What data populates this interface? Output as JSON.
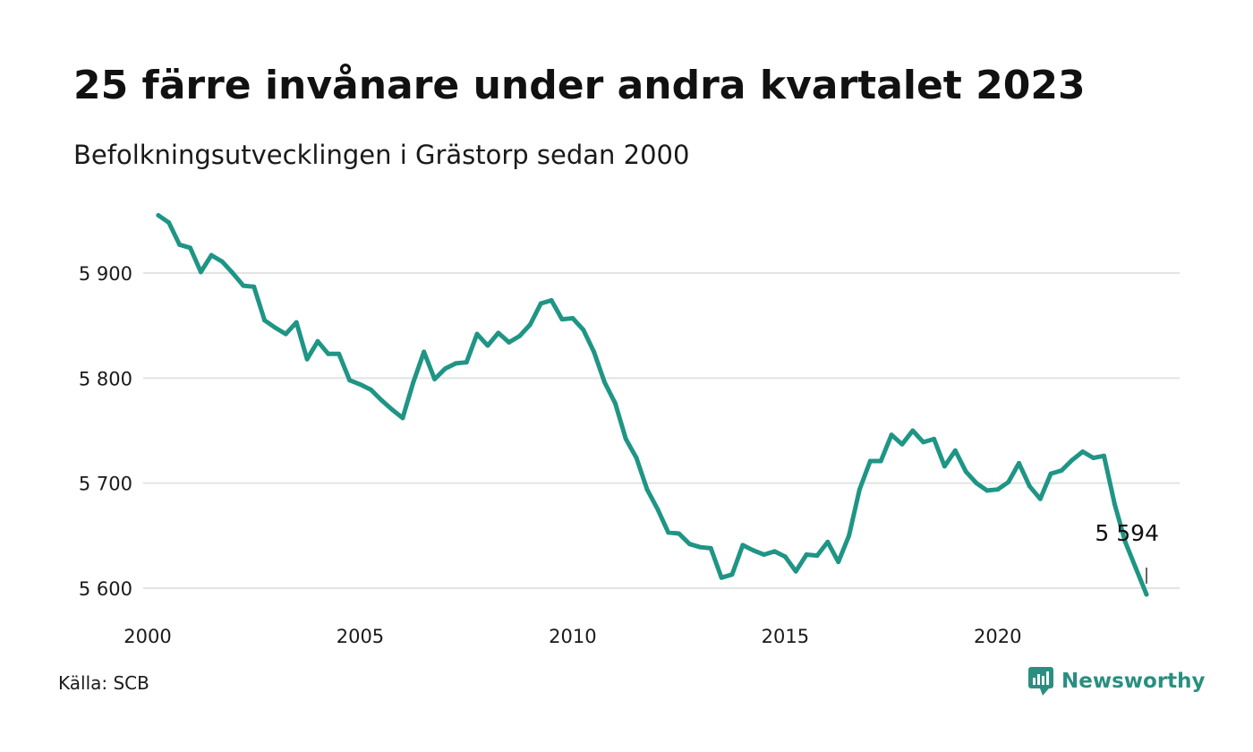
{
  "title": "25 färre invånare under andra kvartalet 2023",
  "subtitle": "Befolkningsutvecklingen i Grästorp sedan 2000",
  "source": "Källa: SCB",
  "brand": {
    "name": "Newsworthy",
    "icon": "newsworthy-logo-icon"
  },
  "colors": {
    "line": "#1f9585",
    "grid": "#e3e3e3",
    "text": "#1a1a1a",
    "brand": "#2a8f80"
  },
  "chart_data": {
    "type": "line",
    "title": "25 färre invånare under andra kvartalet 2023",
    "subtitle": "Befolkningsutvecklingen i Grästorp sedan 2000",
    "xlabel": "",
    "ylabel": "",
    "x_ticks": [
      2000,
      2005,
      2010,
      2015,
      2020
    ],
    "x_tick_labels": [
      "2000",
      "2005",
      "2010",
      "2015",
      "2020"
    ],
    "y_ticks": [
      5600,
      5700,
      5800,
      5900
    ],
    "y_tick_labels": [
      "5 600",
      "5 700",
      "5 800",
      "5 900"
    ],
    "xlim": [
      2000,
      2023.7
    ],
    "ylim": [
      5590,
      5960
    ],
    "grid": true,
    "legend": "none",
    "series": [
      {
        "values": [
          [
            2000.25,
            5955
          ],
          [
            2000.5,
            5948
          ],
          [
            2000.75,
            5927
          ],
          [
            2001.0,
            5924
          ],
          [
            2001.25,
            5901
          ],
          [
            2001.5,
            5917
          ],
          [
            2001.75,
            5911
          ],
          [
            2002.0,
            5900
          ],
          [
            2002.25,
            5888
          ],
          [
            2002.5,
            5887
          ],
          [
            2002.75,
            5855
          ],
          [
            2003.0,
            5848
          ],
          [
            2003.25,
            5842
          ],
          [
            2003.5,
            5853
          ],
          [
            2003.75,
            5818
          ],
          [
            2004.0,
            5835
          ],
          [
            2004.25,
            5823
          ],
          [
            2004.5,
            5823
          ],
          [
            2004.75,
            5798
          ],
          [
            2005.0,
            5794
          ],
          [
            2005.25,
            5789
          ],
          [
            2005.5,
            5779
          ],
          [
            2005.75,
            5770
          ],
          [
            2006.0,
            5762
          ],
          [
            2006.25,
            5796
          ],
          [
            2006.5,
            5825
          ],
          [
            2006.75,
            5799
          ],
          [
            2007.0,
            5809
          ],
          [
            2007.25,
            5814
          ],
          [
            2007.5,
            5815
          ],
          [
            2007.75,
            5842
          ],
          [
            2008.0,
            5831
          ],
          [
            2008.25,
            5843
          ],
          [
            2008.5,
            5834
          ],
          [
            2008.75,
            5840
          ],
          [
            2009.0,
            5851
          ],
          [
            2009.25,
            5871
          ],
          [
            2009.5,
            5874
          ],
          [
            2009.75,
            5856
          ],
          [
            2010.0,
            5857
          ],
          [
            2010.25,
            5846
          ],
          [
            2010.5,
            5825
          ],
          [
            2010.75,
            5796
          ],
          [
            2011.0,
            5776
          ],
          [
            2011.25,
            5742
          ],
          [
            2011.5,
            5724
          ],
          [
            2011.75,
            5694
          ],
          [
            2012.0,
            5675
          ],
          [
            2012.25,
            5653
          ],
          [
            2012.5,
            5652
          ],
          [
            2012.75,
            5642
          ],
          [
            2013.0,
            5639
          ],
          [
            2013.25,
            5638
          ],
          [
            2013.5,
            5610
          ],
          [
            2013.75,
            5613
          ],
          [
            2014.0,
            5641
          ],
          [
            2014.25,
            5636
          ],
          [
            2014.5,
            5632
          ],
          [
            2014.75,
            5635
          ],
          [
            2015.0,
            5630
          ],
          [
            2015.25,
            5616
          ],
          [
            2015.5,
            5632
          ],
          [
            2015.75,
            5631
          ],
          [
            2016.0,
            5644
          ],
          [
            2016.25,
            5625
          ],
          [
            2016.5,
            5650
          ],
          [
            2016.75,
            5694
          ],
          [
            2017.0,
            5721
          ],
          [
            2017.25,
            5721
          ],
          [
            2017.5,
            5746
          ],
          [
            2017.75,
            5737
          ],
          [
            2018.0,
            5750
          ],
          [
            2018.25,
            5739
          ],
          [
            2018.5,
            5742
          ],
          [
            2018.75,
            5716
          ],
          [
            2019.0,
            5731
          ],
          [
            2019.25,
            5711
          ],
          [
            2019.5,
            5700
          ],
          [
            2019.75,
            5693
          ],
          [
            2020.0,
            5694
          ],
          [
            2020.25,
            5701
          ],
          [
            2020.5,
            5719
          ],
          [
            2020.75,
            5697
          ],
          [
            2021.0,
            5685
          ],
          [
            2021.25,
            5709
          ],
          [
            2021.5,
            5712
          ],
          [
            2021.75,
            5722
          ],
          [
            2022.0,
            5730
          ],
          [
            2022.25,
            5724
          ],
          [
            2022.5,
            5726
          ],
          [
            2022.75,
            5680
          ],
          [
            2023.0,
            5644
          ],
          [
            2023.25,
            5619
          ],
          [
            2023.5,
            5594
          ]
        ]
      }
    ],
    "annotations": [
      {
        "x": 2023.5,
        "y": 5594,
        "text": "5 594"
      }
    ]
  }
}
